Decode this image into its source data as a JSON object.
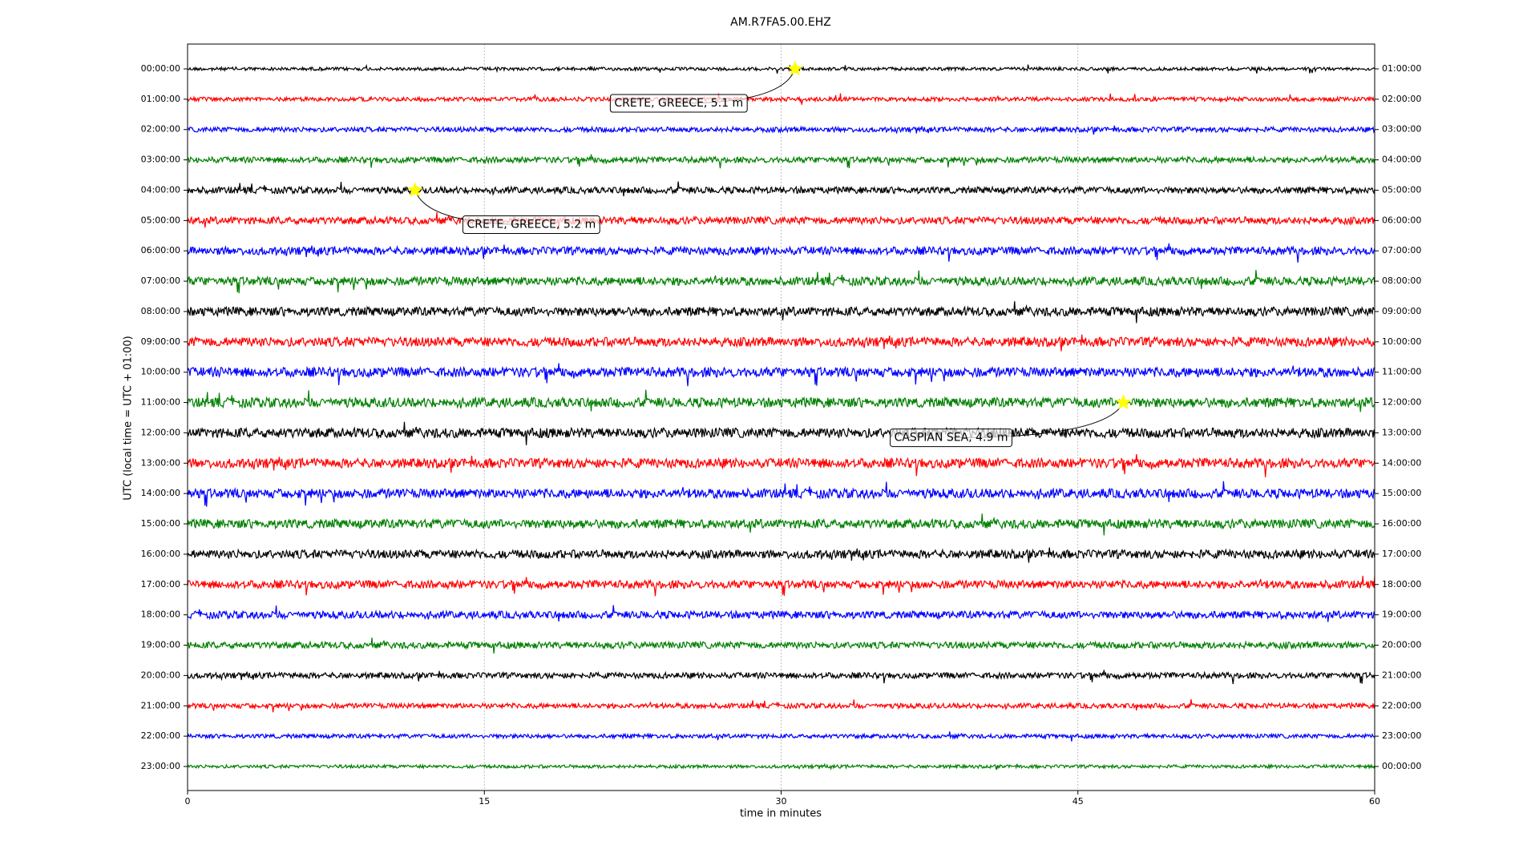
{
  "chart_data": {
    "type": "dayplot",
    "title": "AM.R7FA5.00.EHZ",
    "xlabel": "time in minutes",
    "ylabel": "UTC (local time = UTC + 01:00)",
    "xlim": [
      0,
      60
    ],
    "xticks": [
      0,
      15,
      30,
      45,
      60
    ],
    "grid": true,
    "rows": [
      {
        "label": "00:00:00",
        "right_label": "01:00:00",
        "color": "#000000",
        "events": [
          {
            "x": 30.7,
            "label": "CRETE, GREECE, 5.1 m"
          }
        ]
      },
      {
        "label": "01:00:00",
        "right_label": "02:00:00",
        "color": "#ff0000"
      },
      {
        "label": "02:00:00",
        "right_label": "03:00:00",
        "color": "#0000ff"
      },
      {
        "label": "03:00:00",
        "right_label": "04:00:00",
        "color": "#008000"
      },
      {
        "label": "04:00:00",
        "right_label": "05:00:00",
        "color": "#000000",
        "events": [
          {
            "x": 11.5,
            "label": "CRETE, GREECE, 5.2 m"
          }
        ]
      },
      {
        "label": "05:00:00",
        "right_label": "06:00:00",
        "color": "#ff0000"
      },
      {
        "label": "06:00:00",
        "right_label": "07:00:00",
        "color": "#0000ff"
      },
      {
        "label": "07:00:00",
        "right_label": "08:00:00",
        "color": "#008000"
      },
      {
        "label": "08:00:00",
        "right_label": "09:00:00",
        "color": "#000000"
      },
      {
        "label": "09:00:00",
        "right_label": "10:00:00",
        "color": "#ff0000"
      },
      {
        "label": "10:00:00",
        "right_label": "11:00:00",
        "color": "#0000ff"
      },
      {
        "label": "11:00:00",
        "right_label": "12:00:00",
        "color": "#008000",
        "events": [
          {
            "x": 47.3,
            "label": "CASPIAN SEA, 4.9 m"
          }
        ]
      },
      {
        "label": "12:00:00",
        "right_label": "13:00:00",
        "color": "#000000"
      },
      {
        "label": "13:00:00",
        "right_label": "14:00:00",
        "color": "#ff0000"
      },
      {
        "label": "14:00:00",
        "right_label": "15:00:00",
        "color": "#0000ff"
      },
      {
        "label": "15:00:00",
        "right_label": "16:00:00",
        "color": "#008000"
      },
      {
        "label": "16:00:00",
        "right_label": "17:00:00",
        "color": "#000000"
      },
      {
        "label": "17:00:00",
        "right_label": "18:00:00",
        "color": "#ff0000"
      },
      {
        "label": "18:00:00",
        "right_label": "19:00:00",
        "color": "#0000ff"
      },
      {
        "label": "19:00:00",
        "right_label": "20:00:00",
        "color": "#008000"
      },
      {
        "label": "20:00:00",
        "right_label": "21:00:00",
        "color": "#000000"
      },
      {
        "label": "21:00:00",
        "right_label": "22:00:00",
        "color": "#ff0000"
      },
      {
        "label": "22:00:00",
        "right_label": "23:00:00",
        "color": "#0000ff"
      },
      {
        "label": "23:00:00",
        "right_label": "00:00:00",
        "color": "#008000"
      }
    ]
  }
}
